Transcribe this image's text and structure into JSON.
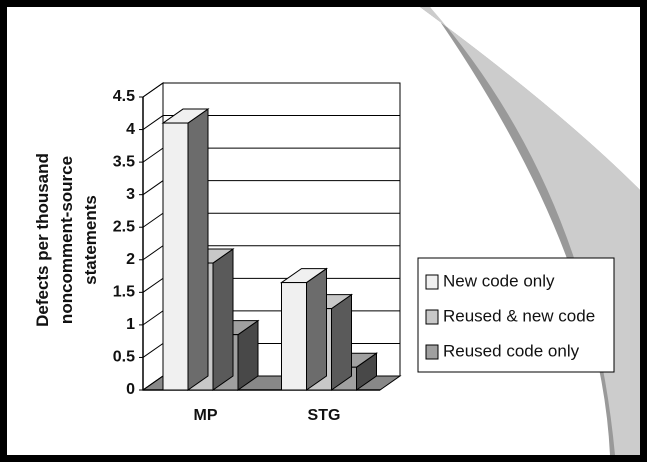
{
  "chart_data": {
    "type": "bar3d",
    "y_label": [
      "Defects per thousand",
      "noncomment-source",
      "statements"
    ],
    "categories": [
      "MP",
      "STG"
    ],
    "series": [
      {
        "name": "New code only",
        "color": "#f0f0f0",
        "values": [
          4.1,
          1.65
        ]
      },
      {
        "name": "Reused & new code",
        "color": "#c8c8c8",
        "values": [
          1.95,
          1.25
        ]
      },
      {
        "name": "Reused code only",
        "color": "#a0a0a0",
        "values": [
          0.85,
          0.35
        ]
      }
    ],
    "ylim": [
      0,
      4.5
    ],
    "yticks": [
      0,
      0.5,
      1,
      1.5,
      2,
      2.5,
      3,
      3.5,
      4,
      4.5
    ],
    "grid": true,
    "legend": "right"
  }
}
